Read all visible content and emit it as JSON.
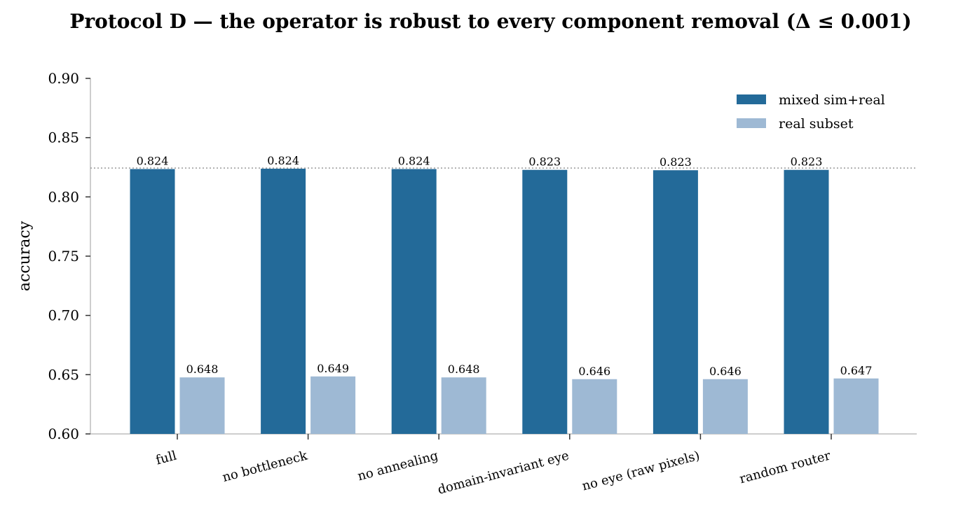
{
  "chart_data": {
    "type": "bar",
    "title": "Protocol D — the operator is robust to every component removal (Δ ≤ 0.001)",
    "xlabel": "",
    "ylabel": "accuracy",
    "ylim": [
      0.6,
      0.9
    ],
    "yticks": [
      "0.60",
      "0.65",
      "0.70",
      "0.75",
      "0.80",
      "0.85",
      "0.90"
    ],
    "categories": [
      "full",
      "no bottleneck",
      "no annealing",
      "domain-invariant eye",
      "no eye (raw pixels)",
      "random router"
    ],
    "series": [
      {
        "name": "mixed sim+real",
        "color": "#236a99",
        "values": [
          0.8235,
          0.8238,
          0.8235,
          0.8228,
          0.8225,
          0.8228
        ],
        "labels": [
          "0.824",
          "0.824",
          "0.824",
          "0.823",
          "0.823",
          "0.823"
        ]
      },
      {
        "name": "real subset",
        "color": "#9eb9d4",
        "values": [
          0.6477,
          0.6485,
          0.6477,
          0.6462,
          0.6462,
          0.6468
        ],
        "labels": [
          "0.648",
          "0.649",
          "0.648",
          "0.646",
          "0.646",
          "0.647"
        ]
      }
    ],
    "reference_line": {
      "value": 0.8243,
      "style": "dotted",
      "color": "#999999"
    },
    "legend_position": "top-right",
    "grid": false
  }
}
